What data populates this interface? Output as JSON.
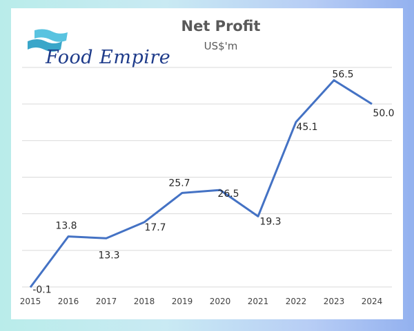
{
  "brand": {
    "name": "Food Empire",
    "colors": {
      "wave_dark": "#3aa6c9",
      "wave_light": "#59c3e0",
      "text": "#1e3b8a"
    }
  },
  "chart_data": {
    "type": "line",
    "title": "Net Profit",
    "subtitle": "US$'m",
    "categories": [
      "2015",
      "2016",
      "2017",
      "2018",
      "2019",
      "2020",
      "2021",
      "2022",
      "2023",
      "2024"
    ],
    "values": [
      -0.1,
      13.8,
      13.3,
      17.7,
      25.7,
      26.5,
      19.3,
      45.1,
      56.5,
      50.0
    ],
    "data_labels": [
      "-0.1",
      "13.8",
      "13.3",
      "17.7",
      "25.7",
      "26.5",
      "19.3",
      "45.1",
      "56.5",
      "50.0"
    ],
    "ylim": [
      0,
      60
    ],
    "grid": true,
    "legend": "none",
    "line_color": "#4472c4"
  }
}
